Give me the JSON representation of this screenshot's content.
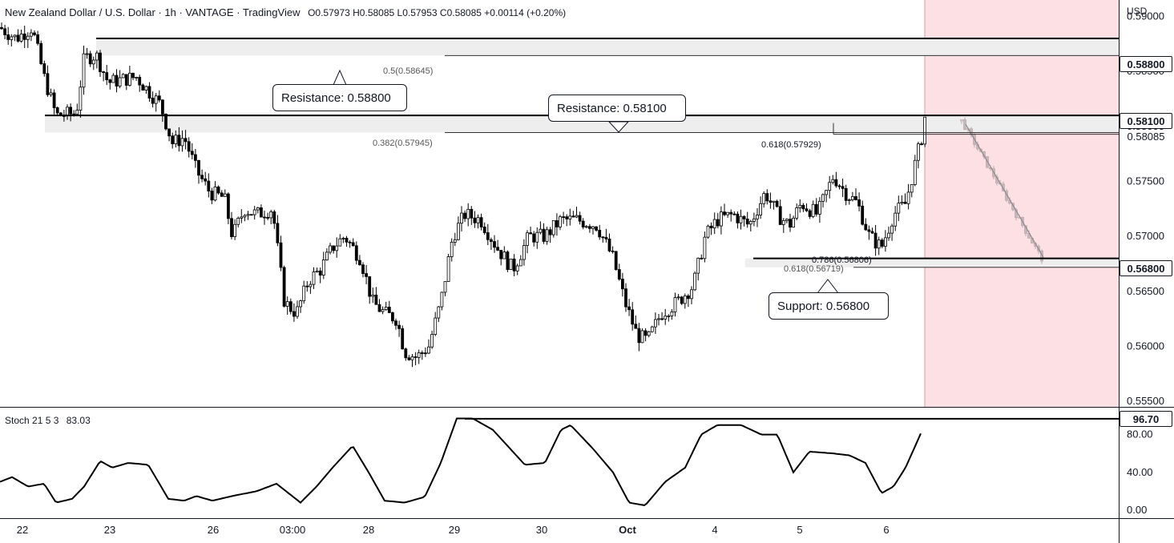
{
  "header": {
    "symbol_title": "New Zealand Dollar / U.S. Dollar · 1h · VANTAGE · TradingView",
    "ohlc": "O0.57973 H0.58085 L0.57953 C0.58085 +0.00114 (+0.20%)"
  },
  "price_axis": {
    "unit": "USD",
    "ticks": [
      "0.59000",
      "0.58500",
      "0.58000",
      "0.57500",
      "0.57000",
      "0.56500",
      "0.56000",
      "0.55500"
    ],
    "tags": [
      {
        "label": "0.58800"
      },
      {
        "label": "0.58100"
      },
      {
        "label": "0.58085",
        "plain": true
      },
      {
        "label": "0.56800"
      }
    ]
  },
  "time_axis": {
    "ticks": [
      "22",
      "23",
      "26",
      "03:00",
      "28",
      "29",
      "30",
      "Oct",
      "4",
      "5",
      "6"
    ]
  },
  "annotations": {
    "callouts": [
      {
        "text": "Resistance: 0.58800"
      },
      {
        "text": "Resistance: 0.58100"
      },
      {
        "text": "Support: 0.56800"
      }
    ],
    "fib_labels": [
      "0.5(0.58645)",
      "0.382(0.57945)",
      "0.618(0.57929)",
      "0.786(0.56806)",
      "0.618(0.56719)"
    ]
  },
  "stochastic": {
    "label": "Stoch 21 5 3",
    "value": "83.03",
    "ticks": [
      "80.00",
      "40.00",
      "0.00"
    ],
    "level_tag": "96.70"
  },
  "colors": {
    "bull_candle": "#ffffff",
    "bear_candle": "#000000",
    "projection_zone": "#fde0e4",
    "zone_fill": "#eeeeee"
  },
  "chart_data": {
    "type": "candlestick",
    "y_range": [
      0.5545,
      0.5915
    ],
    "levels": {
      "resistance_1": 0.588,
      "resistance_2": 0.581,
      "support": 0.568,
      "last_price": 0.58085,
      "fib_0_5": 0.58645,
      "fib_0_382": 0.57945,
      "fib_0_618_upper": 0.57929,
      "fib_0_786": 0.56806,
      "fib_0_618_lower": 0.56719
    },
    "close_path": [
      [
        0,
        0.589
      ],
      [
        20,
        0.588
      ],
      [
        40,
        0.589
      ],
      [
        55,
        0.5845
      ],
      [
        70,
        0.581
      ],
      [
        95,
        0.5812
      ],
      [
        105,
        0.5862
      ],
      [
        120,
        0.5865
      ],
      [
        135,
        0.584
      ],
      [
        170,
        0.5845
      ],
      [
        200,
        0.582
      ],
      [
        215,
        0.5785
      ],
      [
        230,
        0.579
      ],
      [
        245,
        0.576
      ],
      [
        262,
        0.574
      ],
      [
        280,
        0.5735
      ],
      [
        290,
        0.57
      ],
      [
        305,
        0.5725
      ],
      [
        320,
        0.572
      ],
      [
        340,
        0.5725
      ],
      [
        355,
        0.564
      ],
      [
        370,
        0.563
      ],
      [
        385,
        0.566
      ],
      [
        400,
        0.567
      ],
      [
        415,
        0.569
      ],
      [
        430,
        0.57
      ],
      [
        450,
        0.568
      ],
      [
        465,
        0.564
      ],
      [
        480,
        0.563
      ],
      [
        495,
        0.5625
      ],
      [
        505,
        0.5595
      ],
      [
        520,
        0.559
      ],
      [
        535,
        0.56
      ],
      [
        550,
        0.564
      ],
      [
        565,
        0.57
      ],
      [
        580,
        0.572
      ],
      [
        600,
        0.5715
      ],
      [
        620,
        0.569
      ],
      [
        640,
        0.567
      ],
      [
        660,
        0.57
      ],
      [
        680,
        0.57
      ],
      [
        700,
        0.5715
      ],
      [
        720,
        0.5715
      ],
      [
        745,
        0.571
      ],
      [
        765,
        0.568
      ],
      [
        780,
        0.564
      ],
      [
        795,
        0.561
      ],
      [
        808,
        0.5605
      ],
      [
        825,
        0.563
      ],
      [
        845,
        0.564
      ],
      [
        865,
        0.5655
      ],
      [
        880,
        0.57
      ],
      [
        895,
        0.5715
      ],
      [
        915,
        0.572
      ],
      [
        935,
        0.571
      ],
      [
        955,
        0.574
      ],
      [
        970,
        0.572
      ],
      [
        985,
        0.571
      ],
      [
        1000,
        0.573
      ],
      [
        1020,
        0.572
      ],
      [
        1040,
        0.5755
      ],
      [
        1055,
        0.574
      ],
      [
        1070,
        0.573
      ],
      [
        1085,
        0.57
      ],
      [
        1100,
        0.569
      ],
      [
        1115,
        0.572
      ],
      [
        1130,
        0.573
      ],
      [
        1140,
        0.576
      ],
      [
        1150,
        0.579
      ],
      [
        1155,
        0.58085
      ]
    ],
    "projection_path": [
      [
        1200,
        0.5805
      ],
      [
        1300,
        0.568
      ]
    ],
    "stochastic_k": [
      [
        0,
        30
      ],
      [
        15,
        35
      ],
      [
        35,
        25
      ],
      [
        55,
        28
      ],
      [
        70,
        8
      ],
      [
        90,
        12
      ],
      [
        105,
        25
      ],
      [
        125,
        52
      ],
      [
        140,
        45
      ],
      [
        160,
        50
      ],
      [
        185,
        48
      ],
      [
        210,
        12
      ],
      [
        230,
        10
      ],
      [
        245,
        15
      ],
      [
        265,
        10
      ],
      [
        290,
        15
      ],
      [
        320,
        20
      ],
      [
        345,
        28
      ],
      [
        375,
        8
      ],
      [
        395,
        25
      ],
      [
        415,
        45
      ],
      [
        440,
        68
      ],
      [
        460,
        40
      ],
      [
        480,
        10
      ],
      [
        505,
        8
      ],
      [
        530,
        14
      ],
      [
        550,
        50
      ],
      [
        570,
        97
      ],
      [
        590,
        97
      ],
      [
        615,
        85
      ],
      [
        655,
        48
      ],
      [
        680,
        50
      ],
      [
        700,
        85
      ],
      [
        712,
        90
      ],
      [
        740,
        65
      ],
      [
        765,
        40
      ],
      [
        785,
        8
      ],
      [
        805,
        5
      ],
      [
        830,
        30
      ],
      [
        855,
        45
      ],
      [
        875,
        80
      ],
      [
        895,
        90
      ],
      [
        925,
        90
      ],
      [
        950,
        80
      ],
      [
        970,
        80
      ],
      [
        990,
        40
      ],
      [
        1010,
        62
      ],
      [
        1040,
        60
      ],
      [
        1060,
        58
      ],
      [
        1080,
        50
      ],
      [
        1100,
        18
      ],
      [
        1115,
        25
      ],
      [
        1130,
        45
      ],
      [
        1150,
        83
      ]
    ]
  }
}
